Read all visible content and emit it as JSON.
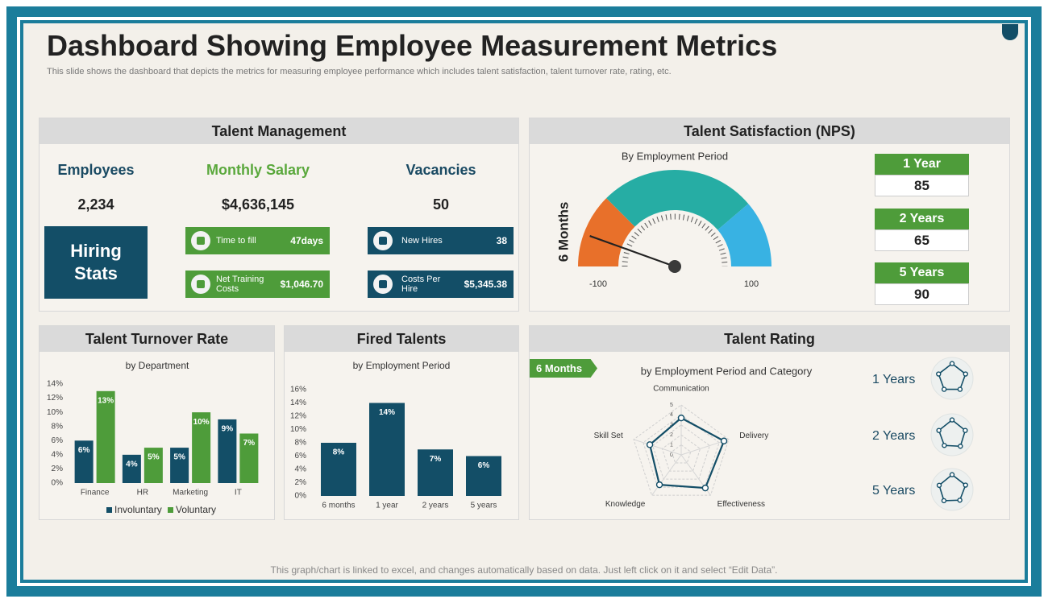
{
  "header": {
    "title": "Dashboard Showing Employee Measurement Metrics",
    "subtitle": "This slide shows the dashboard that depicts the metrics for measuring employee performance which includes talent satisfaction, talent turnover rate, rating, etc."
  },
  "talent_management": {
    "title": "Talent Management",
    "kpis": [
      {
        "label": "Employees",
        "value": "2,234"
      },
      {
        "label": "Monthly Salary",
        "value": "$4,636,145"
      },
      {
        "label": "Vacancies",
        "value": "50"
      }
    ],
    "hiring_stats": "Hiring Stats",
    "stats": [
      {
        "label": "Time to fill",
        "value": "47days"
      },
      {
        "label": "Net Training Costs",
        "value": "$1,046.70"
      },
      {
        "label": "New Hires",
        "value": "38"
      },
      {
        "label": "Costs Per Hire",
        "value": "$5,345.38"
      }
    ]
  },
  "talent_satisfaction": {
    "title": "Talent Satisfaction (NPS)",
    "periods": [
      {
        "label": "1 Year",
        "value": 85
      },
      {
        "label": "2 Years",
        "value": 65
      },
      {
        "label": "5 Years",
        "value": 90
      }
    ]
  },
  "footer": "This graph/chart is linked to excel, and changes automatically based on data. Just left click on it and select “Edit Data”.",
  "chart_data": [
    {
      "type": "gauge",
      "subtitle": "By Employment Period",
      "ylabel": "6 Months",
      "value": -78,
      "ylim": [
        -100,
        100
      ],
      "yticks": [
        -100,
        100
      ],
      "bands": [
        {
          "from": -100,
          "to": -50,
          "color": "#e8702a"
        },
        {
          "from": -50,
          "to": 55,
          "color": "#26ada4"
        },
        {
          "from": 55,
          "to": 100,
          "color": "#38b2e3"
        }
      ]
    },
    {
      "type": "bar",
      "title": "Talent Turnover Rate",
      "subtitle": "by Department",
      "categories": [
        "Finance",
        "HR",
        "Marketing",
        "IT"
      ],
      "series": [
        {
          "name": "Involuntary",
          "color": "#134e67",
          "values": [
            6,
            4,
            5,
            9
          ],
          "value_labels": [
            "6%",
            "4%",
            "5%",
            "9%"
          ]
        },
        {
          "name": "Voluntary",
          "color": "#4e9c3a",
          "values": [
            13,
            5,
            10,
            7
          ],
          "value_labels": [
            "13%",
            "5%",
            "10%",
            "7%"
          ]
        }
      ],
      "ylim": [
        0,
        14
      ],
      "yticks": [
        {
          "value": 0,
          "label": "0%"
        },
        {
          "value": 2,
          "label": "2%"
        },
        {
          "value": 4,
          "label": "4%"
        },
        {
          "value": 6,
          "label": "6%"
        },
        {
          "value": 8,
          "label": "8%"
        },
        {
          "value": 10,
          "label": "10%"
        },
        {
          "value": 12,
          "label": "12%"
        },
        {
          "value": 14,
          "label": "14%"
        }
      ]
    },
    {
      "type": "bar",
      "title": "Fired Talents",
      "subtitle": "by Employment Period",
      "categories": [
        "6 months",
        "1 year",
        "2 years",
        "5 years"
      ],
      "values": [
        8,
        14,
        7,
        6
      ],
      "value_labels": [
        "8%",
        "14%",
        "7%",
        "6%"
      ],
      "color": "#134e67",
      "ylim": [
        0,
        16
      ],
      "yticks": [
        {
          "value": 0,
          "label": "0%"
        },
        {
          "value": 2,
          "label": "2%"
        },
        {
          "value": 4,
          "label": "4%"
        },
        {
          "value": 6,
          "label": "6%"
        },
        {
          "value": 8,
          "label": "8%"
        },
        {
          "value": 10,
          "label": "10%"
        },
        {
          "value": 12,
          "label": "12%"
        },
        {
          "value": 14,
          "label": "14%"
        },
        {
          "value": 16,
          "label": "16%"
        }
      ]
    },
    {
      "type": "radar",
      "title": "Talent Rating",
      "subtitle": "by Employment Period and Category",
      "badge": "6 Months",
      "categories": [
        "Communication",
        "Delivery",
        "Effectiveness",
        "Knowledge",
        "Skill Set"
      ],
      "values": [
        3.7,
        4.5,
        4.1,
        3.7,
        3.3
      ],
      "color": "#134e67",
      "rlim": [
        0,
        5
      ],
      "rticks": [
        0,
        1,
        2,
        3,
        4,
        5
      ]
    },
    {
      "type": "radar",
      "title": "1 Years",
      "values": [
        4.6,
        4.4,
        4.2,
        4.2,
        4.4
      ],
      "color": "#134e67",
      "rlim": [
        0,
        5
      ]
    },
    {
      "type": "radar",
      "title": "2 Years",
      "values": [
        4.6,
        4.3,
        4.4,
        4.1,
        4.3
      ],
      "color": "#134e67",
      "rlim": [
        0,
        5
      ]
    },
    {
      "type": "radar",
      "title": "5 Years",
      "values": [
        4.6,
        4.4,
        4.1,
        4.3,
        4.2
      ],
      "color": "#134e67",
      "rlim": [
        0,
        5
      ]
    }
  ]
}
